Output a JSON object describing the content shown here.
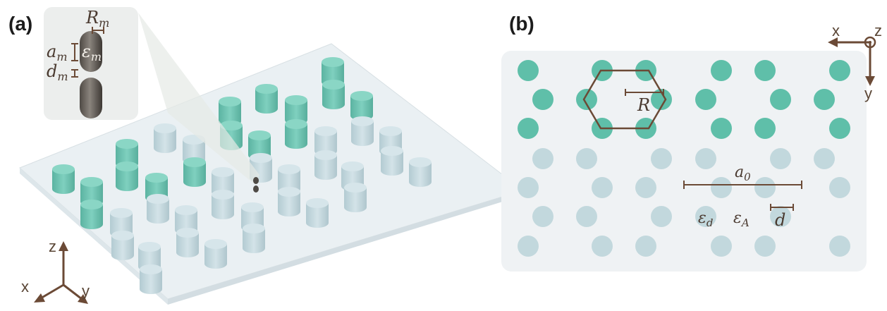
{
  "panels": {
    "a": {
      "label": "(a)"
    },
    "b": {
      "label": "(b)"
    }
  },
  "panel_a": {
    "inset_labels": {
      "Rm_main": "R",
      "Rm_sub": "m",
      "am_main": "a",
      "am_sub": "m",
      "dm_main": "d",
      "dm_sub": "m",
      "em_main": "ε",
      "em_sub": "m"
    },
    "axes": {
      "z": "z",
      "x": "x",
      "y": "y"
    },
    "colors": {
      "teal": "#6fc4b3",
      "lightblue": "#c4d9df",
      "slab": "#eaf0f3",
      "magnifier": "#e9ece9",
      "inset_bg": "#eceeed"
    }
  },
  "panel_b": {
    "labels": {
      "R": "R",
      "a0_main": "a",
      "a0_sub": "0",
      "d": "d",
      "ed_main": "ε",
      "ed_sub": "d",
      "eA_main": "ε",
      "eA_sub": "A"
    },
    "axes": {
      "x": "x",
      "y": "y",
      "z": "z"
    },
    "colors": {
      "teal": "#5fbfa9",
      "lightblue": "#c2d8dd",
      "background": "#eff2f4",
      "annotation": "#6b4a36"
    }
  }
}
